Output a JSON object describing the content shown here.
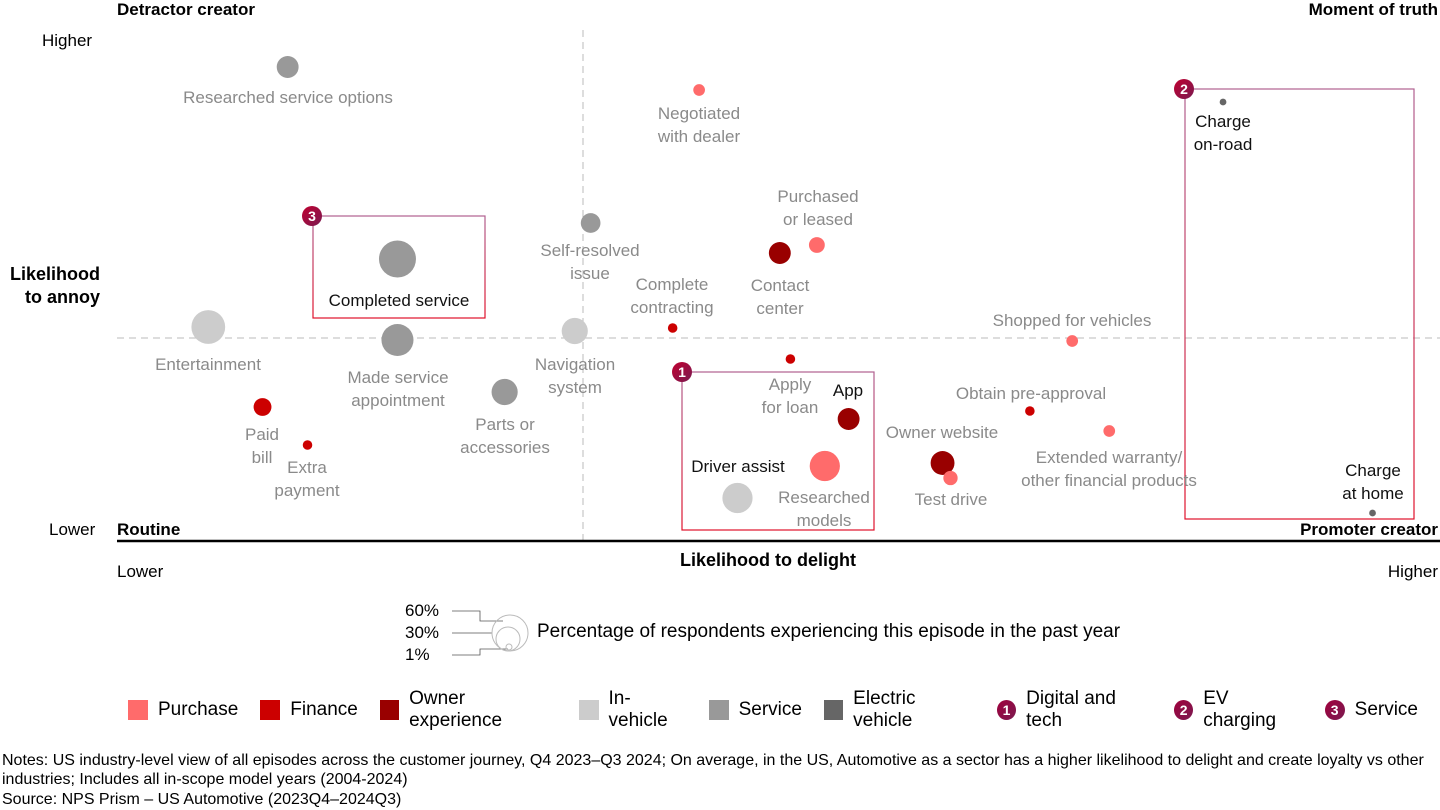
{
  "chart_data": {
    "type": "scatter",
    "subtype": "bubble",
    "xlabel": "Likelihood to delight",
    "ylabel": "Likelihood to annoy",
    "x_ticks": [
      "Lower",
      "Higher"
    ],
    "y_ticks": [
      "Lower",
      "Higher"
    ],
    "xlim": [
      0,
      100
    ],
    "ylim": [
      0,
      100
    ],
    "quadrants": {
      "top_left": "Detractor creator",
      "top_right": "Moment of truth",
      "bottom_left": "Routine",
      "bottom_right": "Promoter creator"
    },
    "categories": [
      {
        "name": "Purchase",
        "color": "#FF6B6B"
      },
      {
        "name": "Finance",
        "color": "#CC0000"
      },
      {
        "name": "Owner experience",
        "color": "#990000"
      },
      {
        "name": "In-vehicle",
        "color": "#CCCCCC"
      },
      {
        "name": "Service",
        "color": "#999999"
      },
      {
        "name": "Electric vehicle",
        "color": "#666666"
      }
    ],
    "highlights": [
      {
        "number": "1",
        "name": "Digital and tech"
      },
      {
        "number": "2",
        "name": "EV charging"
      },
      {
        "number": "3",
        "name": "Service"
      }
    ],
    "size_legend": {
      "title": "Percentage of respondents experiencing this episode in the past year",
      "values": [
        "60%",
        "30%",
        "1%"
      ]
    },
    "points": [
      {
        "label": [
          "Researched service options"
        ],
        "category": "Service",
        "x": 12.9,
        "y": 94.6,
        "pct": 21
      },
      {
        "label": [
          "Negotiated",
          "with dealer"
        ],
        "category": "Purchase",
        "x": 44.0,
        "y": 90.0,
        "pct": 6
      },
      {
        "label": [
          "Charge",
          "on-road"
        ],
        "category": "Electric vehicle",
        "x": 83.6,
        "y": 87.6,
        "pct": 2,
        "highlight": true
      },
      {
        "label": [
          "Self-resolved",
          "issue"
        ],
        "category": "Service",
        "x": 35.8,
        "y": 63.4,
        "pct": 17
      },
      {
        "label": [
          "Completed service"
        ],
        "category": "Service",
        "x": 21.2,
        "y": 56.2,
        "pct": 60,
        "highlight": true
      },
      {
        "label": [
          "Contact",
          "center"
        ],
        "category": "Owner experience",
        "x": 50.1,
        "y": 57.4,
        "pct": 21
      },
      {
        "label": [
          "Purchased",
          "or leased"
        ],
        "category": "Purchase",
        "x": 52.9,
        "y": 59.0,
        "pct": 11
      },
      {
        "label": [
          "Entertainment"
        ],
        "category": "In-vehicle",
        "x": 6.9,
        "y": 42.6,
        "pct": 50
      },
      {
        "label": [
          "Made service",
          "appointment"
        ],
        "category": "Service",
        "x": 21.2,
        "y": 40.0,
        "pct": 45
      },
      {
        "label": [
          "Navigation",
          "system"
        ],
        "category": "In-vehicle",
        "x": 34.6,
        "y": 41.8,
        "pct": 30
      },
      {
        "label": [
          "Complete",
          "contracting"
        ],
        "category": "Finance",
        "x": 42.0,
        "y": 42.4,
        "pct": 4
      },
      {
        "label": [
          "Shopped for vehicles"
        ],
        "category": "Purchase",
        "x": 72.2,
        "y": 39.8,
        "pct": 6
      },
      {
        "label": [
          "Apply",
          "for loan"
        ],
        "category": "Finance",
        "x": 50.9,
        "y": 36.2,
        "pct": 4
      },
      {
        "label": [
          "Paid",
          "bill"
        ],
        "category": "Finance",
        "x": 11.0,
        "y": 26.6,
        "pct": 14
      },
      {
        "label": [
          "Extra",
          "payment"
        ],
        "category": "Finance",
        "x": 14.4,
        "y": 19.0,
        "pct": 4
      },
      {
        "label": [
          "Parts or",
          "accessories"
        ],
        "category": "Service",
        "x": 29.3,
        "y": 29.6,
        "pct": 30
      },
      {
        "label": [
          "App"
        ],
        "category": "Owner experience",
        "x": 55.3,
        "y": 24.2,
        "pct": 21,
        "highlight": true
      },
      {
        "label": [
          "Obtain pre-approval"
        ],
        "category": "Finance",
        "x": 69.0,
        "y": 25.8,
        "pct": 4
      },
      {
        "label": [
          "Extended warranty/",
          "other financial products"
        ],
        "category": "Purchase",
        "x": 75.0,
        "y": 21.8,
        "pct": 6
      },
      {
        "label": [
          "Owner website"
        ],
        "category": "Owner experience",
        "x": 62.4,
        "y": 15.4,
        "pct": 25
      },
      {
        "label": [
          "Test drive"
        ],
        "category": "Purchase",
        "x": 63.0,
        "y": 12.4,
        "pct": 9
      },
      {
        "label": [
          "Researched",
          "models"
        ],
        "category": "Purchase",
        "x": 53.5,
        "y": 14.8,
        "pct": 40
      },
      {
        "label": [
          "Driver assist"
        ],
        "category": "In-vehicle",
        "x": 46.9,
        "y": 8.4,
        "pct": 40,
        "highlight": true
      },
      {
        "label": [
          "Charge",
          "at home"
        ],
        "category": "Electric vehicle",
        "x": 94.9,
        "y": 5.4,
        "pct": 2,
        "highlight": true
      }
    ]
  },
  "notes": {
    "line1": "Notes: US industry-level view of all episodes across the customer journey, Q4 2023–Q3 2024; On average, in the US, Automotive as a sector has a higher likelihood to delight and create loyalty vs other industries; Includes all in-scope model years (2004-2024)",
    "source": "Source: NPS Prism – US Automotive (2023Q4–2024Q3)"
  }
}
